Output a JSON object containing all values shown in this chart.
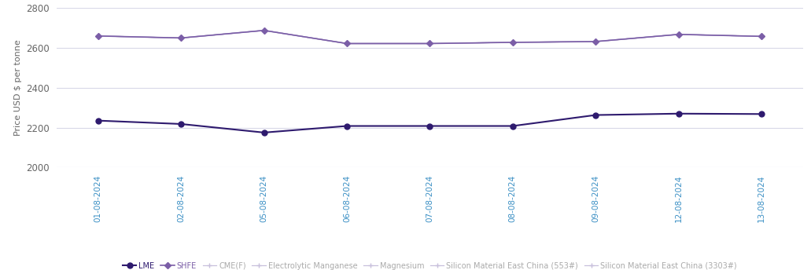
{
  "dates": [
    "01-08-2024",
    "02-08-2024",
    "05-08-2024",
    "06-08-2024",
    "07-08-2024",
    "08-08-2024",
    "09-08-2024",
    "12-08-2024",
    "13-08-2024"
  ],
  "lme": [
    2235,
    2218,
    2175,
    2208,
    2208,
    2208,
    2263,
    2270,
    2268
  ],
  "shfe": [
    2660,
    2650,
    2688,
    2622,
    2622,
    2628,
    2632,
    2668,
    2658
  ],
  "cmef": [
    2660,
    2650,
    2688,
    2622,
    2622,
    2628,
    2632,
    2668,
    2658
  ],
  "electrolytic_manganese": [
    2660,
    2650,
    2688,
    2622,
    2622,
    2628,
    2632,
    2668,
    2658
  ],
  "magnesium": [
    2660,
    2650,
    2688,
    2622,
    2622,
    2628,
    2632,
    2668,
    2658
  ],
  "silicon_553": [
    2660,
    2650,
    2688,
    2622,
    2622,
    2628,
    2632,
    2668,
    2658
  ],
  "silicon_3303": [
    2660,
    2650,
    2688,
    2622,
    2622,
    2628,
    2632,
    2668,
    2658
  ],
  "lme_color": "#2e1a6e",
  "shfe_color": "#7b5ea7",
  "other_color": "#c8c0dc",
  "ylim": [
    2000,
    2800
  ],
  "yticks": [
    2000,
    2200,
    2400,
    2600,
    2800
  ],
  "ylabel": "Price USD $ per tonne",
  "background_color": "#ffffff",
  "grid_color": "#d8d8e8",
  "legend_labels": [
    "LME",
    "SHFE",
    "CME(F)",
    "Electrolytic Manganese",
    "Magnesium",
    "Silicon Material East China (553#)",
    "Silicon Material East China (3303#)"
  ],
  "fig_width": 10.31,
  "fig_height": 3.44,
  "dpi": 100
}
